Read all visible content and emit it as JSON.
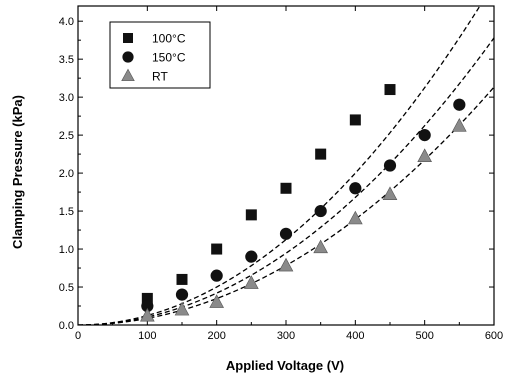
{
  "chart_data": {
    "type": "scatter",
    "xlabel": "Applied Voltage (V)",
    "ylabel": "Clamping Pressure (kPa)",
    "xlim": [
      0,
      600
    ],
    "ylim": [
      0,
      4.2
    ],
    "x_ticks": [
      0,
      100,
      200,
      300,
      400,
      500,
      600
    ],
    "y_ticks": [
      0.0,
      0.5,
      1.0,
      1.5,
      2.0,
      2.5,
      3.0,
      3.5,
      4.0
    ],
    "x_tick_labels": [
      "0",
      "100",
      "200",
      "300",
      "400",
      "500",
      "600"
    ],
    "y_tick_labels": [
      "0.0",
      "0.5",
      "1.0",
      "1.5",
      "2.0",
      "2.5",
      "3.0",
      "3.5",
      "4.0"
    ],
    "grid": false,
    "legend_position": "top-left",
    "series": [
      {
        "name": "100°C",
        "marker": "square",
        "color": "#111111",
        "x": [
          100,
          150,
          200,
          250,
          300,
          350,
          400,
          450
        ],
        "y": [
          0.35,
          0.6,
          1.0,
          1.45,
          1.8,
          2.25,
          2.7,
          3.1
        ],
        "fit_coefficient": 1.25e-05
      },
      {
        "name": "150°C",
        "marker": "circle",
        "color": "#111111",
        "x": [
          100,
          150,
          200,
          250,
          300,
          350,
          400,
          450,
          500,
          550
        ],
        "y": [
          0.25,
          0.4,
          0.65,
          0.9,
          1.2,
          1.5,
          1.8,
          2.1,
          2.5,
          2.9
        ],
        "fit_coefficient": 1.05e-05
      },
      {
        "name": "RT",
        "marker": "triangle",
        "color": "#8a8a8a",
        "x": [
          100,
          150,
          200,
          250,
          300,
          350,
          400,
          450,
          500,
          550
        ],
        "y": [
          0.12,
          0.2,
          0.3,
          0.55,
          0.78,
          1.02,
          1.4,
          1.72,
          2.22,
          2.62
        ],
        "fit_coefficient": 8.7e-06
      }
    ]
  }
}
